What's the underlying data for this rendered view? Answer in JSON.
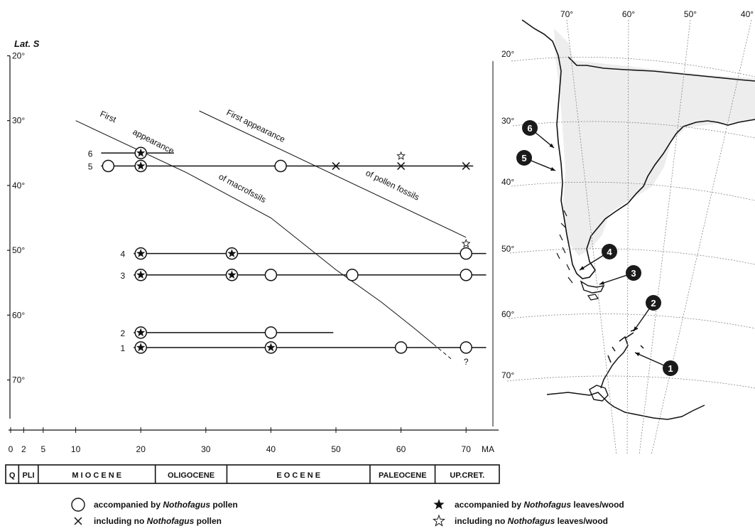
{
  "chart_data": {
    "type": "scatter",
    "y_axis": {
      "title": "Lat. S",
      "ticks": [
        "20°",
        "30°",
        "40°",
        "50°",
        "60°",
        "70°"
      ],
      "tick_values": [
        20,
        30,
        40,
        50,
        60,
        70
      ],
      "ylim": [
        20,
        75
      ]
    },
    "x_axis": {
      "unit": "MA",
      "ticks": [
        "0",
        "2",
        "5",
        "10",
        "20",
        "30",
        "40",
        "50",
        "60",
        "70"
      ],
      "tick_values": [
        0,
        2,
        5,
        10,
        20,
        30,
        40,
        50,
        60,
        70
      ],
      "xlim": [
        0,
        72
      ]
    },
    "epochs": [
      {
        "label": "Q",
        "start": 0,
        "end": 2
      },
      {
        "label": "PLI",
        "start": 2,
        "end": 5
      },
      {
        "label": "M I O C E N E",
        "start": 5,
        "end": 23
      },
      {
        "label": "OLIGOCENE",
        "start": 23,
        "end": 34
      },
      {
        "label": "E O C E N E",
        "start": 34,
        "end": 56
      },
      {
        "label": "PALEOCENE",
        "start": 56,
        "end": 66
      },
      {
        "label": "UP.CRET.",
        "start": 66,
        "end": 72
      }
    ],
    "sites": [
      {
        "id": "6",
        "lat": 35,
        "x_start": 15,
        "x_end": 24,
        "points": [
          {
            "age": 20,
            "type": "circle-star"
          }
        ]
      },
      {
        "id": "5",
        "lat": 37,
        "x_start": 15,
        "x_end": 70,
        "points": [
          {
            "age": 15,
            "type": "circle"
          },
          {
            "age": 20,
            "type": "circle-star"
          },
          {
            "age": 41.5,
            "type": "circle"
          },
          {
            "age": 50,
            "type": "cross"
          },
          {
            "age": 60,
            "type": "cross-openstar"
          },
          {
            "age": 70,
            "type": "cross"
          }
        ]
      },
      {
        "id": "4",
        "lat": 50.5,
        "x_start": 20,
        "x_end": 72,
        "points": [
          {
            "age": 20,
            "type": "circle-star"
          },
          {
            "age": 34,
            "type": "circle-star"
          },
          {
            "age": 70,
            "type": "circle-openstar"
          }
        ]
      },
      {
        "id": "3",
        "lat": 53.8,
        "x_start": 20,
        "x_end": 72,
        "points": [
          {
            "age": 20,
            "type": "circle-star"
          },
          {
            "age": 34,
            "type": "circle-star"
          },
          {
            "age": 40,
            "type": "circle"
          },
          {
            "age": 52.5,
            "type": "circle"
          },
          {
            "age": 70,
            "type": "circle"
          }
        ]
      },
      {
        "id": "2",
        "lat": 62.7,
        "x_start": 20,
        "x_end": 48.5,
        "points": [
          {
            "age": 20,
            "type": "circle-star"
          },
          {
            "age": 40,
            "type": "circle"
          }
        ]
      },
      {
        "id": "1",
        "lat": 65,
        "x_start": 20,
        "x_end": 72,
        "points": [
          {
            "age": 20,
            "type": "circle-star"
          },
          {
            "age": 40,
            "type": "circle-star"
          },
          {
            "age": 60,
            "type": "circle"
          },
          {
            "age": 70,
            "type": "circle",
            "note": "?"
          }
        ]
      }
    ],
    "trend_lines": [
      {
        "label_parts": [
          "First",
          "appearance",
          "of macrofssils"
        ],
        "points": [
          [
            10,
            30
          ],
          [
            27,
            38
          ],
          [
            40,
            45
          ],
          [
            50,
            53
          ],
          [
            57,
            58
          ],
          [
            62,
            62
          ],
          [
            65,
            64.5
          ]
        ],
        "dashed_tail": [
          [
            65,
            64.5
          ],
          [
            68,
            67
          ]
        ]
      },
      {
        "label_parts": [
          "First appearance",
          "of pollen fossils"
        ],
        "points": [
          [
            29,
            28.5
          ],
          [
            70,
            48
          ]
        ]
      }
    ],
    "legend": [
      {
        "symbol": "circle",
        "text_before": "accompanied by ",
        "text_italic": "Nothofagus",
        "text_after": " pollen"
      },
      {
        "symbol": "cross",
        "text_before": "including no ",
        "text_italic": "Nothofagus",
        "text_after": " pollen"
      },
      {
        "symbol": "star",
        "text_before": "accompanied by ",
        "text_italic": "Nothofagus",
        "text_after": " leaves/wood"
      },
      {
        "symbol": "open-star",
        "text_before": "including no ",
        "text_italic": "Nothofagus",
        "text_after": " leaves/wood"
      }
    ]
  },
  "map": {
    "longitude_labels": [
      "70°",
      "60°",
      "50°",
      "40°"
    ],
    "latitude_labels": [
      "20°",
      "30°",
      "40°",
      "50°",
      "60°",
      "70°"
    ],
    "site_markers": [
      {
        "id": "6"
      },
      {
        "id": "5"
      },
      {
        "id": "4"
      },
      {
        "id": "3"
      },
      {
        "id": "2"
      },
      {
        "id": "1"
      }
    ]
  }
}
